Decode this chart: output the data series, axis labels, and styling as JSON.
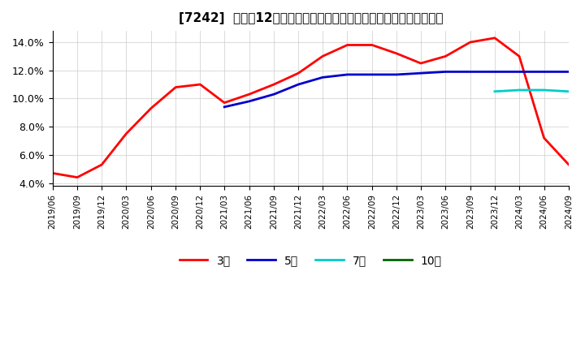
{
  "title": "[7242]  売上高12か月移動合計の対前年同期増減率の標準偏差の推移",
  "ylabel": "",
  "ylim": [
    0.038,
    0.148
  ],
  "yticks": [
    0.04,
    0.06,
    0.08,
    0.1,
    0.12,
    0.14
  ],
  "ytick_labels": [
    "4.0%",
    "6.0%",
    "8.0%",
    "10.0%",
    "12.0%",
    "14.0%"
  ],
  "line_colors": {
    "3y": "#ff0000",
    "5y": "#0000cc",
    "7y": "#00cccc",
    "10y": "#006600"
  },
  "legend_labels": [
    "3年",
    "5年",
    "7年",
    "10年"
  ],
  "background_color": "#ffffff",
  "dates_3y": [
    "2019-06",
    "2019-09",
    "2019-12",
    "2020-03",
    "2020-06",
    "2020-09",
    "2020-12",
    "2021-03",
    "2021-06",
    "2021-09",
    "2021-12",
    "2022-03",
    "2022-06",
    "2022-09",
    "2022-12",
    "2023-03",
    "2023-06",
    "2023-09",
    "2023-12",
    "2024-03",
    "2024-06",
    "2024-09"
  ],
  "values_3y": [
    0.047,
    0.044,
    0.053,
    0.075,
    0.093,
    0.108,
    0.11,
    0.097,
    0.103,
    0.11,
    0.118,
    0.13,
    0.138,
    0.138,
    0.132,
    0.125,
    0.13,
    0.14,
    0.143,
    0.13,
    0.072,
    0.053
  ],
  "dates_5y": [
    "2019-06",
    "2019-09",
    "2019-12",
    "2020-03",
    "2020-06",
    "2020-09",
    "2020-12",
    "2021-03",
    "2021-06",
    "2021-09",
    "2021-12",
    "2022-03",
    "2022-06",
    "2022-09",
    "2022-12",
    "2023-03",
    "2023-06",
    "2023-09",
    "2023-12",
    "2024-03",
    "2024-06",
    "2024-09"
  ],
  "values_5y": [
    null,
    null,
    null,
    null,
    null,
    null,
    null,
    0.094,
    0.098,
    0.103,
    0.11,
    0.115,
    0.117,
    0.117,
    0.117,
    0.118,
    0.119,
    0.119,
    0.119,
    0.119,
    0.119,
    0.119
  ],
  "dates_7y": [
    "2019-06",
    "2019-09",
    "2019-12",
    "2020-03",
    "2020-06",
    "2020-09",
    "2020-12",
    "2021-03",
    "2021-06",
    "2021-09",
    "2021-12",
    "2022-03",
    "2022-06",
    "2022-09",
    "2022-12",
    "2023-03",
    "2023-06",
    "2023-09",
    "2023-12",
    "2024-03",
    "2024-06",
    "2024-09"
  ],
  "values_7y": [
    null,
    null,
    null,
    null,
    null,
    null,
    null,
    null,
    null,
    null,
    null,
    null,
    null,
    null,
    null,
    null,
    null,
    null,
    0.105,
    0.106,
    0.106,
    0.105
  ],
  "dates_10y": [
    "2019-06",
    "2019-09",
    "2019-12",
    "2020-03",
    "2020-06",
    "2020-09",
    "2020-12",
    "2021-03",
    "2021-06",
    "2021-09",
    "2021-12",
    "2022-03",
    "2022-06",
    "2022-09",
    "2022-12",
    "2023-03",
    "2023-06",
    "2023-09",
    "2023-12",
    "2024-03",
    "2024-06",
    "2024-09"
  ],
  "values_10y": [
    null,
    null,
    null,
    null,
    null,
    null,
    null,
    null,
    null,
    null,
    null,
    null,
    null,
    null,
    null,
    null,
    null,
    null,
    null,
    null,
    null,
    null
  ]
}
